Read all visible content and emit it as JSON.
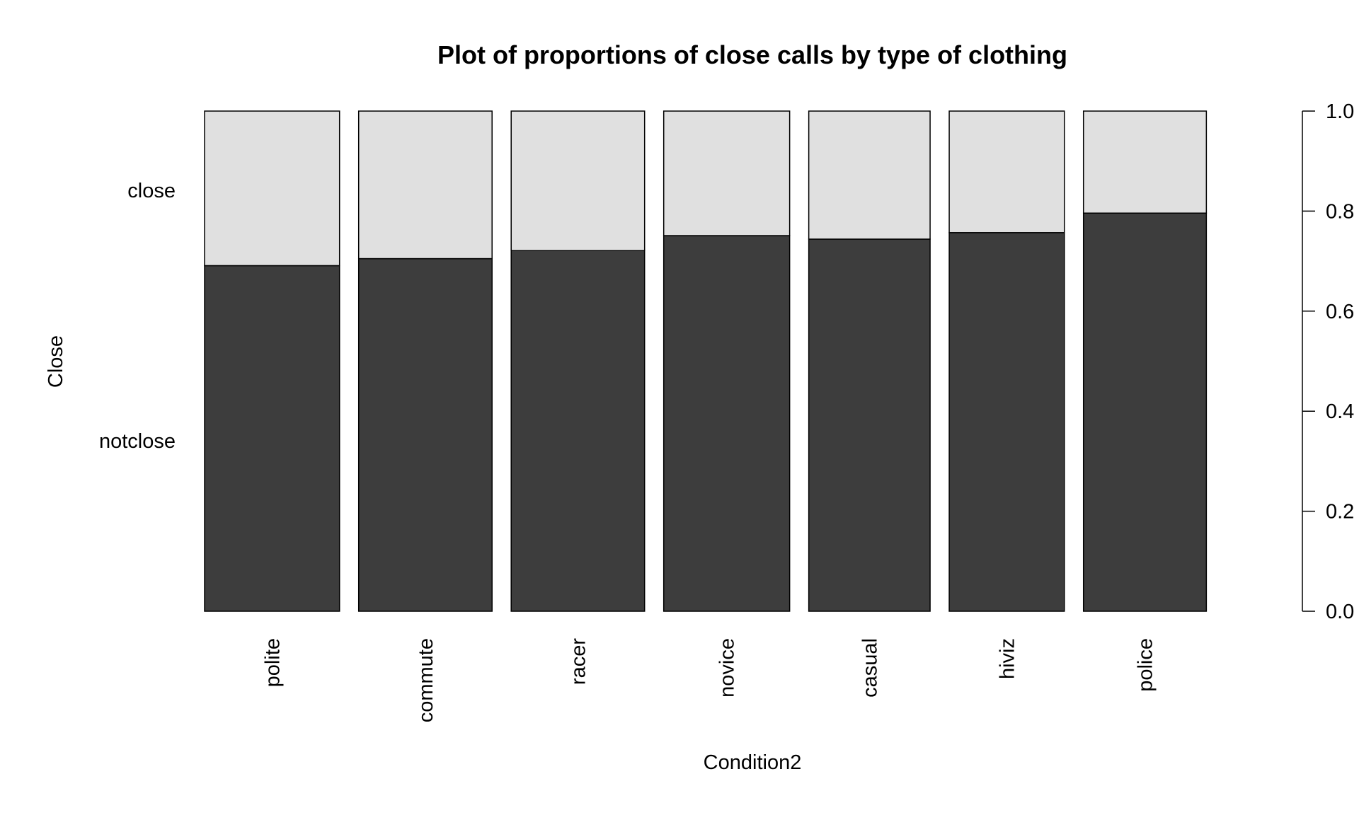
{
  "chart_data": {
    "type": "bar",
    "subtype": "spineplot",
    "title": "Plot of proportions of close calls by type of clothing",
    "xlabel": "Condition2",
    "ylabel": "Close",
    "categories": [
      "polite",
      "commute",
      "racer",
      "novice",
      "casual",
      "hiviz",
      "police"
    ],
    "category_widths": [
      0.1374,
      0.1358,
      0.1358,
      0.1282,
      0.1235,
      0.1172,
      0.1251
    ],
    "series": [
      {
        "name": "notclose",
        "values": [
          0.691,
          0.705,
          0.721,
          0.751,
          0.744,
          0.757,
          0.796
        ]
      },
      {
        "name": "close",
        "values": [
          0.309,
          0.295,
          0.279,
          0.249,
          0.256,
          0.243,
          0.204
        ]
      }
    ],
    "ylim": [
      0,
      1
    ],
    "yticks": [
      "0.0",
      "0.2",
      "0.4",
      "0.6",
      "0.8",
      "1.0"
    ],
    "ytick_values": [
      0,
      0.2,
      0.4,
      0.6,
      0.8,
      1.0
    ],
    "y_axis_side": "right",
    "left_level_labels": [
      "close",
      "notclose"
    ],
    "grid": false,
    "colors": {
      "notclose": "#3d3d3d",
      "close": "#e0e0e0",
      "stroke": "#000000"
    }
  }
}
